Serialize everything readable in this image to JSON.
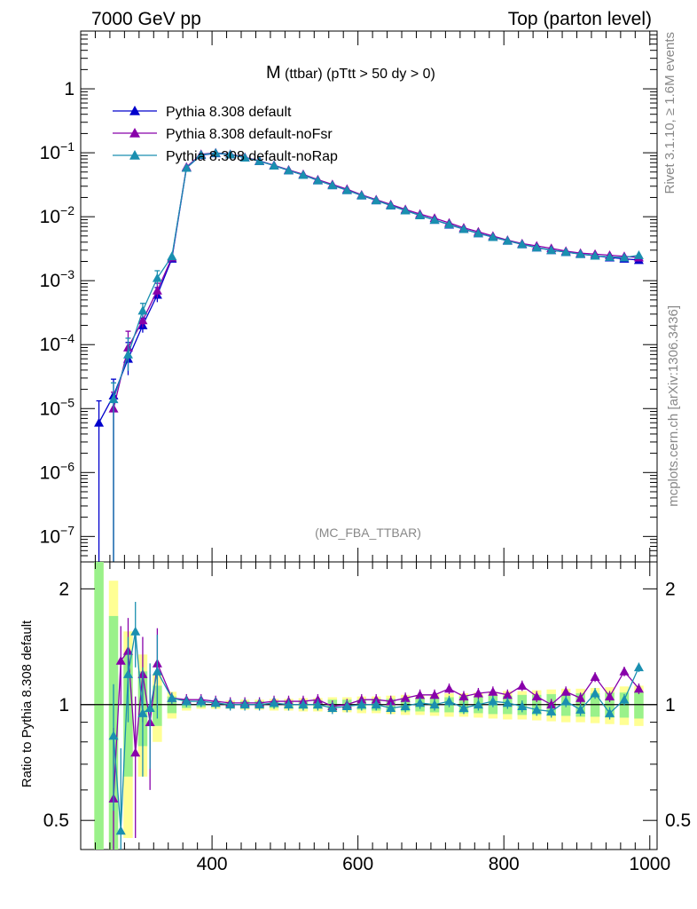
{
  "header": {
    "left": "7000 GeV pp",
    "right": "Top (parton level)"
  },
  "side": {
    "rivet": "Rivet 3.1.10, ≥ 1.6M events",
    "mcplots": "mcplots.cern.ch [arXiv:1306.3436]"
  },
  "chart_data": [
    {
      "type": "line",
      "panel": "main",
      "title_main": "M",
      "title_sub": "(ttbar) (pTtt > 50 dy > 0)",
      "watermark": "(MC_FBA_TTBAR)",
      "yscale": "log",
      "xlim": [
        220,
        1010
      ],
      "ylim": [
        4e-08,
        8
      ],
      "ytick_labels": [
        {
          "base": "10",
          "exp": "−7",
          "value": 1e-07
        },
        {
          "base": "10",
          "exp": "−6",
          "value": 1e-06
        },
        {
          "base": "10",
          "exp": "−5",
          "value": 1e-05
        },
        {
          "base": "10",
          "exp": "−4",
          "value": 0.0001
        },
        {
          "base": "10",
          "exp": "−3",
          "value": 0.001
        },
        {
          "base": "10",
          "exp": "−2",
          "value": 0.01
        },
        {
          "base": "10",
          "exp": "−1",
          "value": 0.1
        },
        {
          "base": "1",
          "exp": "",
          "value": 1
        }
      ],
      "legend": [
        "Pythia 8.308 default",
        "Pythia 8.308 default-noFsr",
        "Pythia 8.308 default-noRap"
      ],
      "series": [
        {
          "name": "Pythia 8.308 default",
          "color": "#0000cc",
          "x": [
            245,
            265,
            285,
            305,
            325,
            345,
            365,
            385,
            405,
            425,
            445,
            465,
            485,
            505,
            525,
            545,
            565,
            585,
            605,
            625,
            645,
            665,
            685,
            705,
            725,
            745,
            765,
            785,
            805,
            825,
            845,
            865,
            885,
            905,
            925,
            945,
            965,
            985
          ],
          "y": [
            6e-06,
            1.6e-05,
            6e-05,
            0.0002,
            0.0006,
            0.0022,
            0.058,
            0.092,
            0.098,
            0.094,
            0.084,
            0.074,
            0.063,
            0.053,
            0.045,
            0.037,
            0.031,
            0.026,
            0.0215,
            0.018,
            0.015,
            0.0125,
            0.0105,
            0.0089,
            0.0075,
            0.0064,
            0.0055,
            0.0048,
            0.0042,
            0.0037,
            0.0033,
            0.003,
            0.0028,
            0.0026,
            0.00245,
            0.0023,
            0.0022,
            0.0021
          ]
        },
        {
          "name": "Pythia 8.308 default-noFsr",
          "color": "#8800aa",
          "x": [
            265,
            285,
            305,
            325,
            345,
            365,
            385,
            405,
            425,
            445,
            465,
            485,
            505,
            525,
            545,
            565,
            585,
            605,
            625,
            645,
            665,
            685,
            705,
            725,
            745,
            765,
            785,
            805,
            825,
            845,
            865,
            885,
            905,
            925,
            945,
            965,
            985
          ],
          "y": [
            1e-05,
            9e-05,
            0.00024,
            0.0007,
            0.0023,
            0.06,
            0.095,
            0.1,
            0.095,
            0.085,
            0.075,
            0.064,
            0.054,
            0.046,
            0.038,
            0.032,
            0.027,
            0.022,
            0.0185,
            0.0155,
            0.013,
            0.011,
            0.0095,
            0.008,
            0.0067,
            0.0058,
            0.005,
            0.0043,
            0.0038,
            0.0035,
            0.0032,
            0.0029,
            0.0027,
            0.0026,
            0.0025,
            0.0024,
            0.0023
          ]
        },
        {
          "name": "Pythia 8.308 default-noRap",
          "color": "#1a8fb0",
          "x": [
            265,
            285,
            305,
            325,
            345,
            365,
            385,
            405,
            425,
            445,
            465,
            485,
            505,
            525,
            545,
            565,
            585,
            605,
            625,
            645,
            665,
            685,
            705,
            725,
            745,
            765,
            785,
            805,
            825,
            845,
            865,
            885,
            905,
            925,
            945,
            965,
            985
          ],
          "y": [
            1.4e-05,
            7e-05,
            0.00034,
            0.0011,
            0.0024,
            0.058,
            0.093,
            0.099,
            0.094,
            0.084,
            0.074,
            0.063,
            0.053,
            0.045,
            0.037,
            0.031,
            0.026,
            0.0215,
            0.018,
            0.015,
            0.0125,
            0.0105,
            0.0089,
            0.0076,
            0.0064,
            0.0055,
            0.0048,
            0.0042,
            0.0037,
            0.0033,
            0.003,
            0.0028,
            0.0026,
            0.00245,
            0.00235,
            0.0023,
            0.0025
          ]
        }
      ]
    },
    {
      "type": "line",
      "panel": "ratio",
      "ylabel": "Ratio to Pythia 8.308 default",
      "xlim": [
        220,
        1010
      ],
      "ylim": [
        0.42,
        2.35
      ],
      "yscale": "log",
      "ytick_labels": [
        "0.5",
        "1",
        "2"
      ],
      "xtick_labels": [
        "400",
        "600",
        "800",
        "1000"
      ],
      "reference_line": 1,
      "band_x": [
        245,
        265,
        285,
        305,
        325,
        345,
        365,
        385,
        405,
        425,
        445,
        465,
        485,
        505,
        525,
        545,
        565,
        585,
        605,
        625,
        645,
        665,
        685,
        705,
        725,
        745,
        765,
        785,
        805,
        825,
        845,
        865,
        885,
        905,
        925,
        945,
        965,
        985
      ],
      "band_inner": [
        1.6,
        0.7,
        0.35,
        0.22,
        0.12,
        0.05,
        0.02,
        0.015,
        0.015,
        0.015,
        0.02,
        0.02,
        0.02,
        0.02,
        0.025,
        0.025,
        0.03,
        0.03,
        0.03,
        0.035,
        0.035,
        0.04,
        0.04,
        0.045,
        0.045,
        0.05,
        0.05,
        0.055,
        0.055,
        0.06,
        0.06,
        0.065,
        0.065,
        0.07,
        0.07,
        0.075,
        0.075,
        0.08
      ],
      "band_outer": [
        2.2,
        1.1,
        0.55,
        0.35,
        0.2,
        0.08,
        0.035,
        0.025,
        0.025,
        0.025,
        0.03,
        0.03,
        0.035,
        0.035,
        0.04,
        0.04,
        0.045,
        0.045,
        0.05,
        0.05,
        0.055,
        0.06,
        0.06,
        0.065,
        0.07,
        0.07,
        0.075,
        0.08,
        0.085,
        0.085,
        0.09,
        0.095,
        0.1,
        0.1,
        0.105,
        0.11,
        0.115,
        0.12
      ],
      "series": [
        {
          "name": "Pythia 8.308 default-noFsr",
          "color": "#8800aa",
          "x": [
            265,
            275,
            285,
            295,
            305,
            315,
            325,
            345,
            365,
            385,
            405,
            425,
            445,
            465,
            485,
            505,
            525,
            545,
            565,
            585,
            605,
            625,
            645,
            665,
            685,
            705,
            725,
            745,
            765,
            785,
            805,
            825,
            845,
            865,
            885,
            905,
            925,
            945,
            965,
            985
          ],
          "y": [
            0.57,
            1.3,
            1.38,
            0.75,
            1.2,
            0.9,
            1.28,
            1.04,
            1.03,
            1.03,
            1.02,
            1.01,
            1.01,
            1.01,
            1.02,
            1.02,
            1.02,
            1.03,
            0.99,
            1.0,
            1.03,
            1.03,
            1.02,
            1.04,
            1.06,
            1.06,
            1.1,
            1.05,
            1.07,
            1.08,
            1.06,
            1.12,
            1.05,
            1.0,
            1.08,
            1.04,
            1.18,
            1.05,
            1.22,
            1.1
          ]
        },
        {
          "name": "Pythia 8.308 default-noRap",
          "color": "#1a8fb0",
          "x": [
            265,
            275,
            285,
            295,
            305,
            315,
            325,
            345,
            365,
            385,
            405,
            425,
            445,
            465,
            485,
            505,
            525,
            545,
            565,
            585,
            605,
            625,
            645,
            665,
            685,
            705,
            725,
            745,
            765,
            785,
            805,
            825,
            845,
            865,
            885,
            905,
            925,
            945,
            965,
            985
          ],
          "y": [
            0.83,
            0.47,
            1.2,
            1.55,
            0.95,
            0.98,
            1.22,
            1.04,
            1.02,
            1.02,
            1.01,
            1.0,
            1.0,
            1.0,
            1.01,
            1.0,
            1.0,
            1.0,
            0.98,
            0.99,
            1.0,
            1.0,
            0.98,
            0.99,
            1.01,
            1.0,
            1.02,
            0.98,
            1.0,
            1.02,
            1.01,
            0.99,
            0.97,
            0.96,
            1.02,
            0.97,
            1.07,
            0.95,
            1.03,
            1.25
          ]
        }
      ]
    }
  ]
}
